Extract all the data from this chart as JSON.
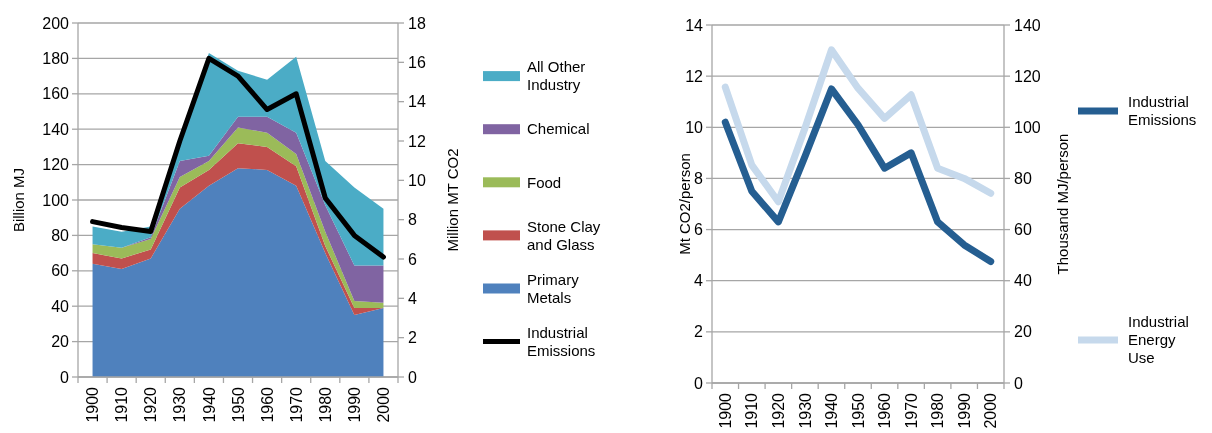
{
  "chart_data": [
    {
      "type": "area",
      "stacked": true,
      "ylabel": "Billion MJ",
      "y2label": "Million MT CO2",
      "categories": [
        "1900",
        "1910",
        "1920",
        "1930",
        "1940",
        "1950",
        "1960",
        "1970",
        "1980",
        "1990",
        "2000"
      ],
      "series": [
        {
          "name": "Primary Metals",
          "color": "#4f81bd",
          "values": [
            64,
            61,
            67,
            95,
            108,
            118,
            117,
            108,
            70,
            35,
            39
          ]
        },
        {
          "name": "Stone Clay and Glass",
          "color": "#c0504d",
          "values": [
            6,
            6,
            5,
            12,
            9,
            14,
            13,
            11,
            4,
            4,
            0
          ]
        },
        {
          "name": "Food",
          "color": "#9bbb59",
          "values": [
            5,
            6,
            6,
            6,
            5,
            9,
            8,
            7,
            8,
            4,
            3
          ]
        },
        {
          "name": "Chemical",
          "color": "#8064a2",
          "values": [
            0,
            0,
            1,
            9,
            3,
            6,
            9,
            12,
            15,
            20,
            21
          ]
        },
        {
          "name": "All Other Industry",
          "color": "#4bacc6",
          "values": [
            10,
            9,
            6,
            11,
            58,
            26,
            21,
            43,
            25,
            44,
            32
          ]
        },
        {
          "name": "Industrial Emissions",
          "color": "#000000",
          "type": "line",
          "axis": "y2",
          "values": [
            7.9,
            7.6,
            7.4,
            12.0,
            16.2,
            15.3,
            13.6,
            14.4,
            9.1,
            7.2,
            6.1
          ]
        }
      ],
      "ylim": [
        0,
        200
      ],
      "yticks": [
        0,
        20,
        40,
        60,
        80,
        100,
        120,
        140,
        160,
        180,
        200
      ],
      "y2lim": [
        0,
        18
      ],
      "y2ticks": [
        0,
        2,
        4,
        6,
        8,
        10,
        12,
        14,
        16,
        18
      ],
      "grid": "y",
      "legend": "right"
    },
    {
      "type": "line",
      "ylabel": "Mt CO2/person",
      "y2label": "Thousand MJ/person",
      "categories": [
        "1900",
        "1910",
        "1920",
        "1930",
        "1940",
        "1950",
        "1960",
        "1970",
        "1980",
        "1990",
        "2000"
      ],
      "series": [
        {
          "name": "Industrial Emissions",
          "color": "#255e91",
          "values": [
            10.2,
            7.5,
            6.3,
            8.85,
            11.5,
            10.1,
            8.4,
            9.0,
            6.3,
            5.4,
            4.75
          ]
        },
        {
          "name": "Industrial Energy Use",
          "color": "#c6d9ec",
          "axis": "y2",
          "values": [
            115.7,
            85.2,
            70.9,
            99.6,
            130.3,
            115.3,
            103.5,
            112.7,
            84,
            80,
            74.2
          ]
        }
      ],
      "ylim": [
        0,
        14
      ],
      "yticks": [
        0,
        2,
        4,
        6,
        8,
        10,
        12,
        14
      ],
      "y2lim": [
        0,
        140
      ],
      "y2ticks": [
        0,
        20,
        40,
        60,
        80,
        100,
        120,
        140
      ],
      "grid": "y",
      "legend": "right"
    }
  ]
}
